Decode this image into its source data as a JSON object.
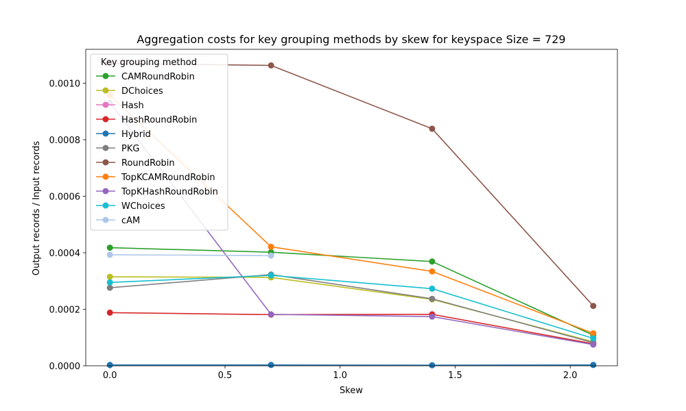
{
  "chart_data": {
    "type": "line",
    "title": "Aggregation costs for key grouping methods by skew for keyspace Size = 729",
    "xlabel": "Skew",
    "ylabel": "Output records / Input records",
    "xlim": [
      -0.105,
      2.205
    ],
    "ylim": [
      0,
      0.00112
    ],
    "xticks": [
      0.0,
      0.5,
      1.0,
      1.5,
      2.0
    ],
    "xtick_labels": [
      "0.0",
      "0.5",
      "1.0",
      "1.5",
      "2.0"
    ],
    "yticks": [
      0,
      0.0002,
      0.0004,
      0.0006,
      0.0008,
      0.001
    ],
    "ytick_labels": [
      "0.0000",
      "0.0002",
      "0.0004",
      "0.0006",
      "0.0008",
      "0.0010"
    ],
    "grid": false,
    "legend_title": "Key grouping method",
    "legend_position": "top-left",
    "x": [
      0.0,
      0.7,
      1.4,
      2.1
    ],
    "series": [
      {
        "name": "CAMRoundRobin",
        "color": "#2ca02c",
        "values": [
          0.000418,
          0.000402,
          0.000369,
          0.000108
        ]
      },
      {
        "name": "DChoices",
        "color": "#bcbd22",
        "values": [
          0.000315,
          0.000313,
          0.000235,
          8.5e-05
        ]
      },
      {
        "name": "Hash",
        "color": "#e377c2",
        "values": [
          3e-06,
          3e-06,
          2e-06,
          3e-06
        ]
      },
      {
        "name": "HashRoundRobin",
        "color": "#d62728",
        "values": [
          0.000188,
          0.000181,
          0.000182,
          7.8e-05
        ]
      },
      {
        "name": "Hybrid",
        "color": "#1f77b4",
        "values": [
          3e-06,
          3e-06,
          2e-06,
          3e-06
        ]
      },
      {
        "name": "PKG",
        "color": "#7f7f7f",
        "values": [
          0.000276,
          0.000323,
          0.000237,
          8.2e-05
        ]
      },
      {
        "name": "RoundRobin",
        "color": "#8c564b",
        "values": [
          0.00107,
          0.001063,
          0.000839,
          0.000212
        ]
      },
      {
        "name": "TopKCAMRoundRobin",
        "color": "#ff7f0e",
        "values": [
          0.000958,
          0.000421,
          0.000334,
          0.000115
        ]
      },
      {
        "name": "TopKHashRoundRobin",
        "color": "#9467bd",
        "values": [
          0.000931,
          0.000182,
          0.000174,
          7.5e-05
        ]
      },
      {
        "name": "WChoices",
        "color": "#17becf",
        "values": [
          0.000295,
          0.00032,
          0.000273,
          9.7e-05
        ]
      },
      {
        "name": "cAM",
        "color": "#aec7e8",
        "values": [
          0.000393,
          0.00039,
          null,
          null
        ]
      }
    ]
  }
}
